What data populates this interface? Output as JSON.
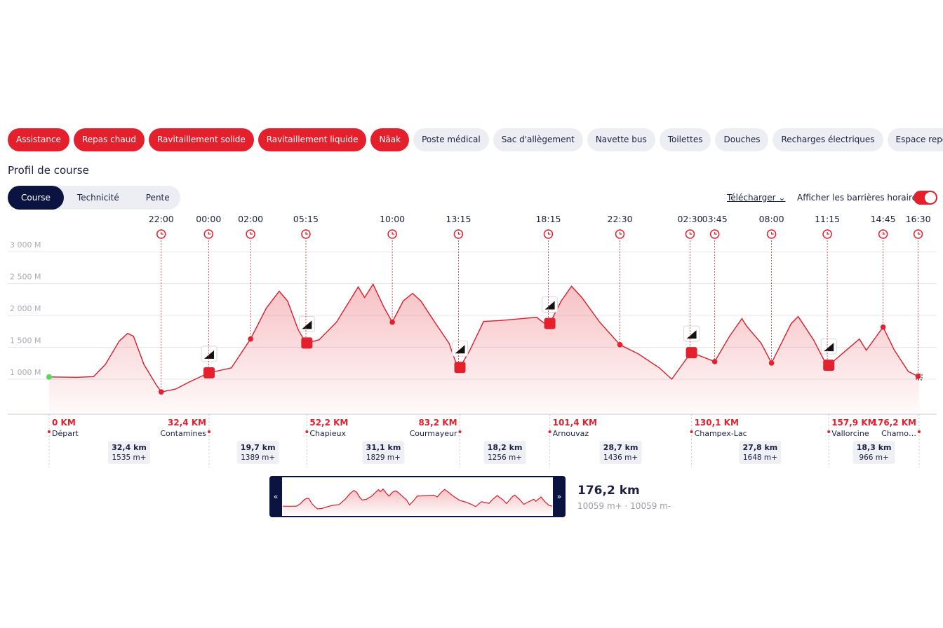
{
  "filters": [
    {
      "label": "Assistance",
      "active": true
    },
    {
      "label": "Repas chaud",
      "active": true
    },
    {
      "label": "Ravitaillement solide",
      "active": true
    },
    {
      "label": "Ravitaillement liquide",
      "active": true
    },
    {
      "label": "Näak",
      "active": true
    },
    {
      "label": "Poste médical",
      "active": false
    },
    {
      "label": "Sac d'allègement",
      "active": false
    },
    {
      "label": "Navette bus",
      "active": false
    },
    {
      "label": "Toilettes",
      "active": false
    },
    {
      "label": "Douches",
      "active": false
    },
    {
      "label": "Recharges électriques",
      "active": false
    },
    {
      "label": "Espace repos",
      "active": false
    }
  ],
  "section_title": "Profil de course",
  "tabs": {
    "items": [
      "Course",
      "Technicité",
      "Pente"
    ],
    "active": 0
  },
  "download": "Télécharger",
  "toggle": {
    "label": "Afficher les barrières horaires",
    "on": true
  },
  "profile": {
    "xlim": [
      0,
      176.2
    ],
    "ylim": [
      450,
      3200
    ],
    "yticks": [
      {
        "value": 1000,
        "label": "1 000 M"
      },
      {
        "value": 1500,
        "label": "1 500 M"
      },
      {
        "value": 2000,
        "label": "2 000 M"
      },
      {
        "value": 2500,
        "label": "2 500 M"
      },
      {
        "value": 3000,
        "label": "3 000 M"
      }
    ],
    "km": [
      0,
      5.7,
      9.0,
      11.4,
      14.2,
      15.9,
      17.1,
      19.2,
      21.6,
      22.7,
      25.6,
      28.4,
      32.3,
      36.9,
      40.8,
      44.0,
      46.6,
      48.3,
      50.4,
      52.0,
      54.7,
      58.2,
      62.6,
      63.9,
      65.6,
      67.9,
      69.5,
      71.7,
      73.6,
      75.3,
      78.1,
      81.0,
      82.9,
      85.2,
      88.0,
      90.9,
      95.8,
      98.7,
      101.1,
      103.7,
      105.8,
      107.9,
      111.5,
      115.6,
      119.3,
      123.6,
      126.1,
      130.0,
      134.8,
      137.8,
      140.3,
      141.3,
      144.2,
      146.3,
      150.3,
      151.7,
      154.8,
      157.6,
      160.6,
      164.1,
      165.5,
      168.9,
      171.2,
      174.0,
      176.2
    ],
    "elevation": [
      1035,
      1030,
      1040,
      1232,
      1597,
      1718,
      1674,
      1232,
      923,
      800,
      845,
      956,
      1099,
      1177,
      1630,
      2116,
      2381,
      2227,
      1785,
      1564,
      1619,
      1895,
      2448,
      2282,
      2492,
      2116,
      1895,
      2227,
      2348,
      2227,
      1895,
      1564,
      1144,
      1453,
      1906,
      1917,
      1950,
      1972,
      1829,
      2227,
      2459,
      2282,
      1895,
      1541,
      1398,
      1177,
      1000,
      1420,
      1276,
      1674,
      1950,
      1829,
      1564,
      1254,
      1873,
      1983,
      1619,
      1199,
      1398,
      1630,
      1453,
      1818,
      1453,
      1122,
      1035
    ],
    "time_barriers": [
      {
        "km": 22.7,
        "time": "22:00"
      },
      {
        "km": 32.3,
        "time": "00:00"
      },
      {
        "km": 40.8,
        "time": "02:00"
      },
      {
        "km": 52.0,
        "time": "05:15"
      },
      {
        "km": 69.5,
        "time": "10:00"
      },
      {
        "km": 82.9,
        "time": "13:15"
      },
      {
        "km": 101.1,
        "time": "18:15"
      },
      {
        "km": 115.6,
        "time": "22:30"
      },
      {
        "km": 129.8,
        "time": "02:30"
      },
      {
        "km": 134.8,
        "time": "03:45"
      },
      {
        "km": 146.3,
        "time": "08:00"
      },
      {
        "km": 157.6,
        "time": "11:15"
      },
      {
        "km": 168.9,
        "time": "14:45"
      },
      {
        "km": 176.0,
        "time": "16:30"
      }
    ],
    "checkpoints": [
      {
        "km": 0,
        "km_label": "0 KM",
        "name": "Départ"
      },
      {
        "km": 32.4,
        "km_label": "32,4 KM",
        "name": "Contamines"
      },
      {
        "km": 52.2,
        "km_label": "52,2 KM",
        "name": "Chapieux"
      },
      {
        "km": 83.2,
        "km_label": "83,2 KM",
        "name": "Courmayeur"
      },
      {
        "km": 101.4,
        "km_label": "101,4 KM",
        "name": "Arnouvaz"
      },
      {
        "km": 130.1,
        "km_label": "130,1 KM",
        "name": "Champex-Lac"
      },
      {
        "km": 157.9,
        "km_label": "157,9 KM",
        "name": "Vallorcine"
      },
      {
        "km": 176.2,
        "km_label": "176,2 KM",
        "name": "Chamo…"
      }
    ],
    "segments": [
      {
        "distance": "32,4 km",
        "gain": "1535 m+"
      },
      {
        "distance": "19,7 km",
        "gain": "1389 m+"
      },
      {
        "distance": "31,1 km",
        "gain": "1829 m+"
      },
      {
        "distance": "18,2 km",
        "gain": "1256 m+"
      },
      {
        "distance": "28,7 km",
        "gain": "1436 m+"
      },
      {
        "distance": "27,8 km",
        "gain": "1648 m+"
      },
      {
        "distance": "18,3 km",
        "gain": "966 m+"
      }
    ]
  },
  "minimap": {
    "prev": "«",
    "next": "»",
    "distance": "176,2 km",
    "elevation": "10059 m+ · 10059 m-"
  }
}
